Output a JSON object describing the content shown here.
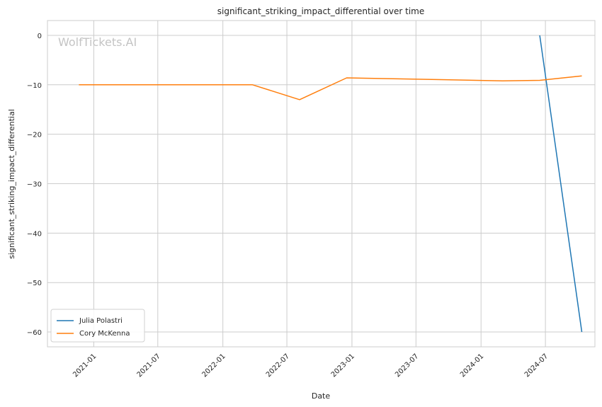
{
  "watermark": "WolfTickets.AI",
  "chart_data": {
    "type": "line",
    "title": "significant_striking_impact_differential over time",
    "xlabel": "Date",
    "ylabel": "significant_striking_impact_differential",
    "x_ticks": [
      "2021-01",
      "2021-07",
      "2022-01",
      "2022-07",
      "2023-01",
      "2023-07",
      "2024-01",
      "2024-07"
    ],
    "y_ticks": [
      0,
      -10,
      -20,
      -30,
      -40,
      -50,
      -60
    ],
    "xlim": [
      "2020-08-23",
      "2024-11-18"
    ],
    "ylim": [
      -63,
      3
    ],
    "grid": true,
    "legend_position": "lower-left",
    "series": [
      {
        "name": "Julia Polastri",
        "color": "#1f77b4",
        "points": [
          {
            "x": "2024-06-15",
            "y": 0
          },
          {
            "x": "2024-10-12",
            "y": -60
          }
        ]
      },
      {
        "name": "Cory McKenna",
        "color": "#ff7f0e",
        "points": [
          {
            "x": "2020-11-20",
            "y": -10
          },
          {
            "x": "2022-03-26",
            "y": -10
          },
          {
            "x": "2022-08-06",
            "y": -13
          },
          {
            "x": "2022-12-17",
            "y": -8.6
          },
          {
            "x": "2023-08-01",
            "y": -8.9
          },
          {
            "x": "2024-03-02",
            "y": -9.2
          },
          {
            "x": "2024-06-15",
            "y": -9.1
          },
          {
            "x": "2024-10-12",
            "y": -8.2
          }
        ]
      }
    ]
  }
}
